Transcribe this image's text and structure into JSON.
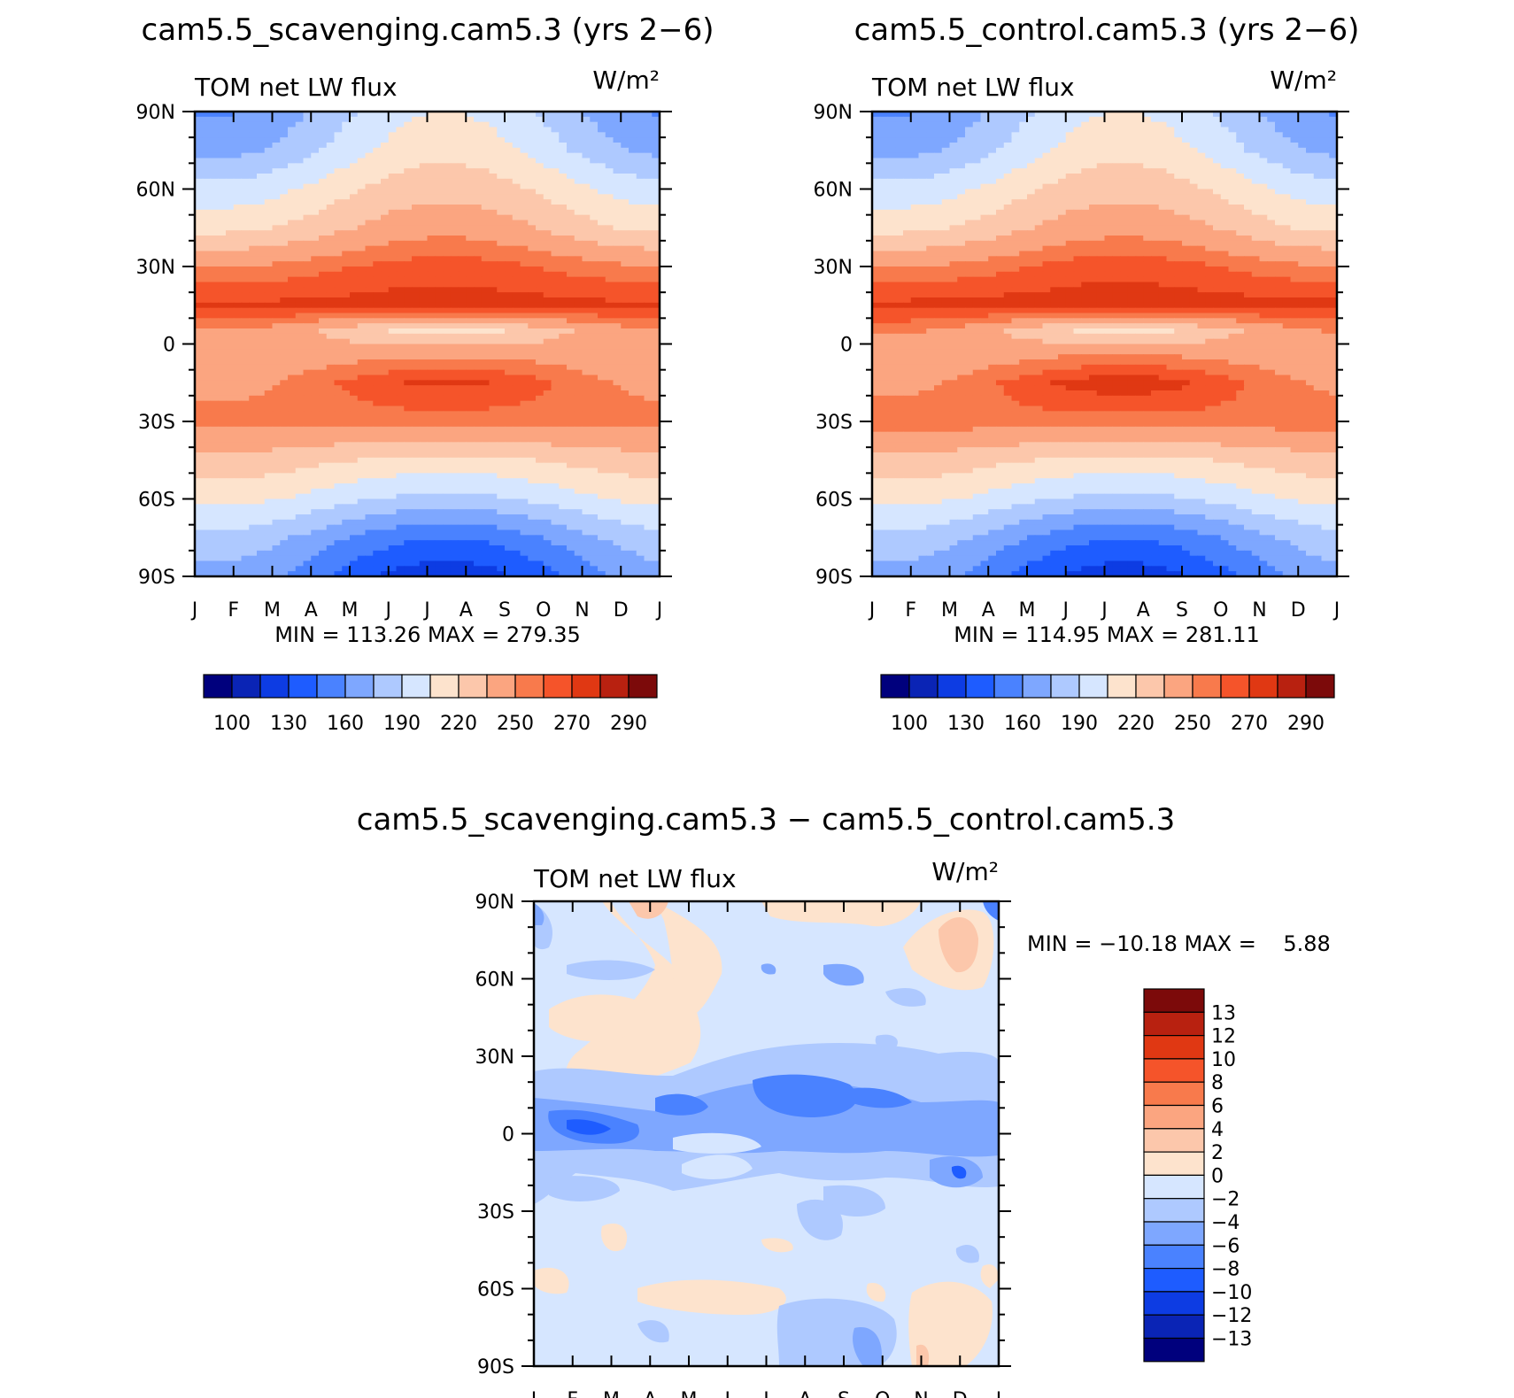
{
  "chart_data": [
    {
      "type": "heatmap",
      "title": "cam5.5_scavenging.cam5.3 (yrs 2−6)",
      "left_label": "TOM net LW flux",
      "units_label": "W/m²",
      "x_tick_labels": [
        "J",
        "F",
        "M",
        "A",
        "M",
        "J",
        "J",
        "A",
        "S",
        "O",
        "N",
        "D",
        "J"
      ],
      "y_tick_labels": [
        "90N",
        "60N",
        "30N",
        "0",
        "30S",
        "60S",
        "90S"
      ],
      "ylim": [
        -90,
        90
      ],
      "min_max_text": "MIN = 113.26 MAX = 279.35",
      "min": 113.26,
      "max": 279.35,
      "colorbar": {
        "orientation": "horizontal",
        "labels": [
          "100",
          "130",
          "160",
          "190",
          "220",
          "250",
          "270",
          "290"
        ],
        "colors": [
          "#00007d",
          "#0a24b5",
          "#0d3ce3",
          "#1e5cff",
          "#4a82ff",
          "#7ea7ff",
          "#aec9ff",
          "#d6e6ff",
          "#fde3cd",
          "#fcc7ab",
          "#fba580",
          "#f87a4c",
          "#f5542a",
          "#e03813",
          "#b82110",
          "#7c0a0a"
        ]
      },
      "latitude_profiles": {
        "latitudes": [
          90,
          75,
          60,
          45,
          30,
          15,
          5,
          -5,
          -15,
          -30,
          -45,
          -60,
          -75,
          -90
        ],
        "jan": [
          158,
          170,
          195,
          215,
          250,
          272,
          250,
          240,
          245,
          255,
          230,
          210,
          185,
          170
        ],
        "jul": [
          205,
          215,
          230,
          245,
          265,
          275,
          215,
          250,
          272,
          255,
          215,
          185,
          145,
          120
        ]
      }
    },
    {
      "type": "heatmap",
      "title": "cam5.5_control.cam5.3 (yrs 2−6)",
      "left_label": "TOM net LW flux",
      "units_label": "W/m²",
      "x_tick_labels": [
        "J",
        "F",
        "M",
        "A",
        "M",
        "J",
        "J",
        "A",
        "S",
        "O",
        "N",
        "D",
        "J"
      ],
      "y_tick_labels": [
        "90N",
        "60N",
        "30N",
        "0",
        "30S",
        "60S",
        "90S"
      ],
      "ylim": [
        -90,
        90
      ],
      "min_max_text": "MIN = 114.95 MAX = 281.11",
      "min": 114.95,
      "max": 281.11,
      "colorbar": {
        "orientation": "horizontal",
        "labels": [
          "100",
          "130",
          "160",
          "190",
          "220",
          "250",
          "270",
          "290"
        ],
        "colors": [
          "#00007d",
          "#0a24b5",
          "#0d3ce3",
          "#1e5cff",
          "#4a82ff",
          "#7ea7ff",
          "#aec9ff",
          "#d6e6ff",
          "#fde3cd",
          "#fcc7ab",
          "#fba580",
          "#f87a4c",
          "#f5542a",
          "#e03813",
          "#b82110",
          "#7c0a0a"
        ]
      },
      "latitude_profiles": {
        "latitudes": [
          90,
          75,
          60,
          45,
          30,
          15,
          5,
          -5,
          -15,
          -30,
          -45,
          -60,
          -75,
          -90
        ],
        "jan": [
          158,
          170,
          195,
          215,
          250,
          273,
          252,
          240,
          247,
          256,
          230,
          210,
          185,
          170
        ],
        "jul": [
          205,
          215,
          230,
          245,
          266,
          276,
          216,
          252,
          276,
          256,
          215,
          185,
          146,
          121
        ]
      }
    },
    {
      "type": "heatmap",
      "title": "cam5.5_scavenging.cam5.3 − cam5.5_control.cam5.3",
      "left_label": "TOM net LW flux",
      "units_label": "W/m²",
      "x_tick_labels": [
        "J",
        "F",
        "M",
        "A",
        "M",
        "J",
        "J",
        "A",
        "S",
        "O",
        "N",
        "D",
        "J"
      ],
      "y_tick_labels": [
        "90N",
        "60N",
        "30N",
        "0",
        "30S",
        "60S",
        "90S"
      ],
      "ylim": [
        -90,
        90
      ],
      "min_max_text": "MIN = −10.18 MAX =    5.88",
      "min": -10.18,
      "max": 5.88,
      "colorbar": {
        "orientation": "vertical",
        "labels": [
          "13",
          "12",
          "10",
          "8",
          "6",
          "4",
          "2",
          "0",
          "−2",
          "−4",
          "−6",
          "−8",
          "−10",
          "−12",
          "−13"
        ],
        "colors": [
          "#7c0a0a",
          "#b82110",
          "#e03813",
          "#f5542a",
          "#f87a4c",
          "#fba580",
          "#fcc7ab",
          "#fde3cd",
          "#d6e6ff",
          "#aec9ff",
          "#7ea7ff",
          "#4a82ff",
          "#1e5cff",
          "#0d3ce3",
          "#0a24b5",
          "#00007d"
        ]
      }
    }
  ]
}
